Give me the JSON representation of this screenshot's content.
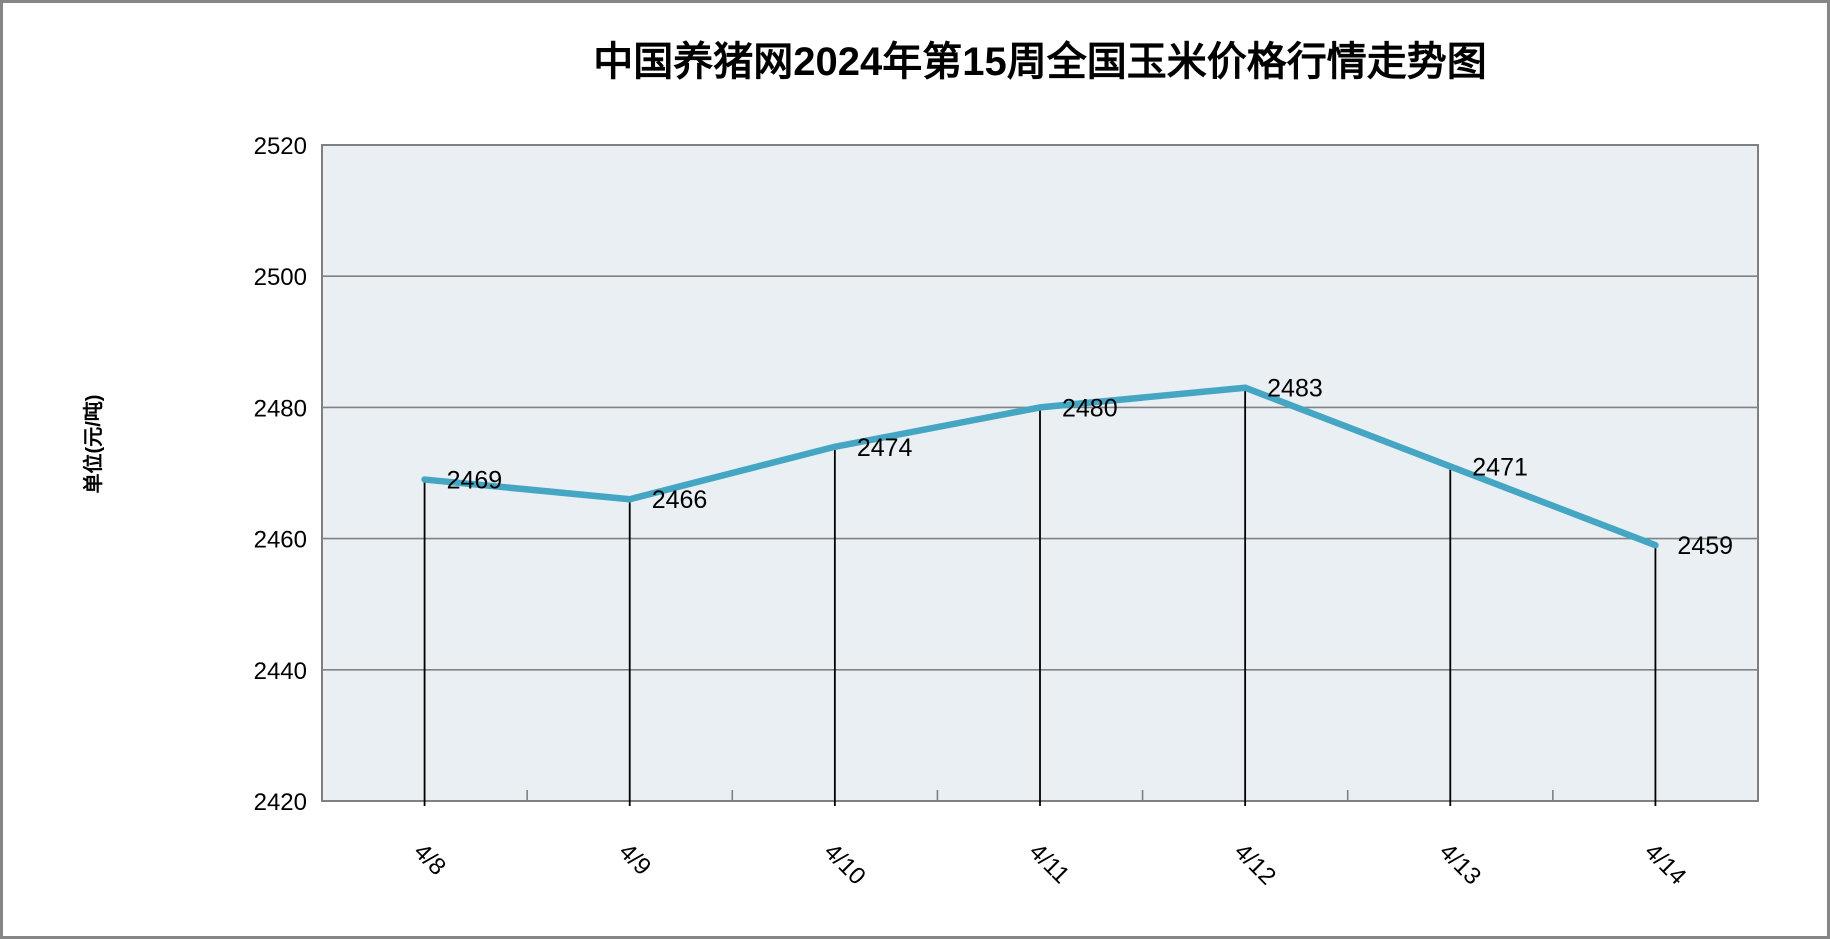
{
  "chart_data": {
    "type": "line",
    "title": "中国养猪网2024年第15周全国玉米价格行情走势图",
    "ylabel": "单位(元/吨)",
    "categories": [
      "4/8",
      "4/9",
      "4/10",
      "4/11",
      "4/12",
      "4/13",
      "4/14"
    ],
    "values": [
      2469,
      2466,
      2474,
      2480,
      2483,
      2471,
      2459
    ],
    "yticks": [
      2420,
      2440,
      2460,
      2480,
      2500,
      2520
    ],
    "ylim": [
      2420,
      2520
    ],
    "grid": "horizontal",
    "legend": "none",
    "data_label_position": "right",
    "colors": {
      "line": "#45A6C4",
      "plot_bg": "#E9EFF3",
      "gridline": "#828282",
      "axis": "#808080",
      "drop_line": "#000000",
      "text": "#000000",
      "outer_border": "#868686"
    }
  }
}
